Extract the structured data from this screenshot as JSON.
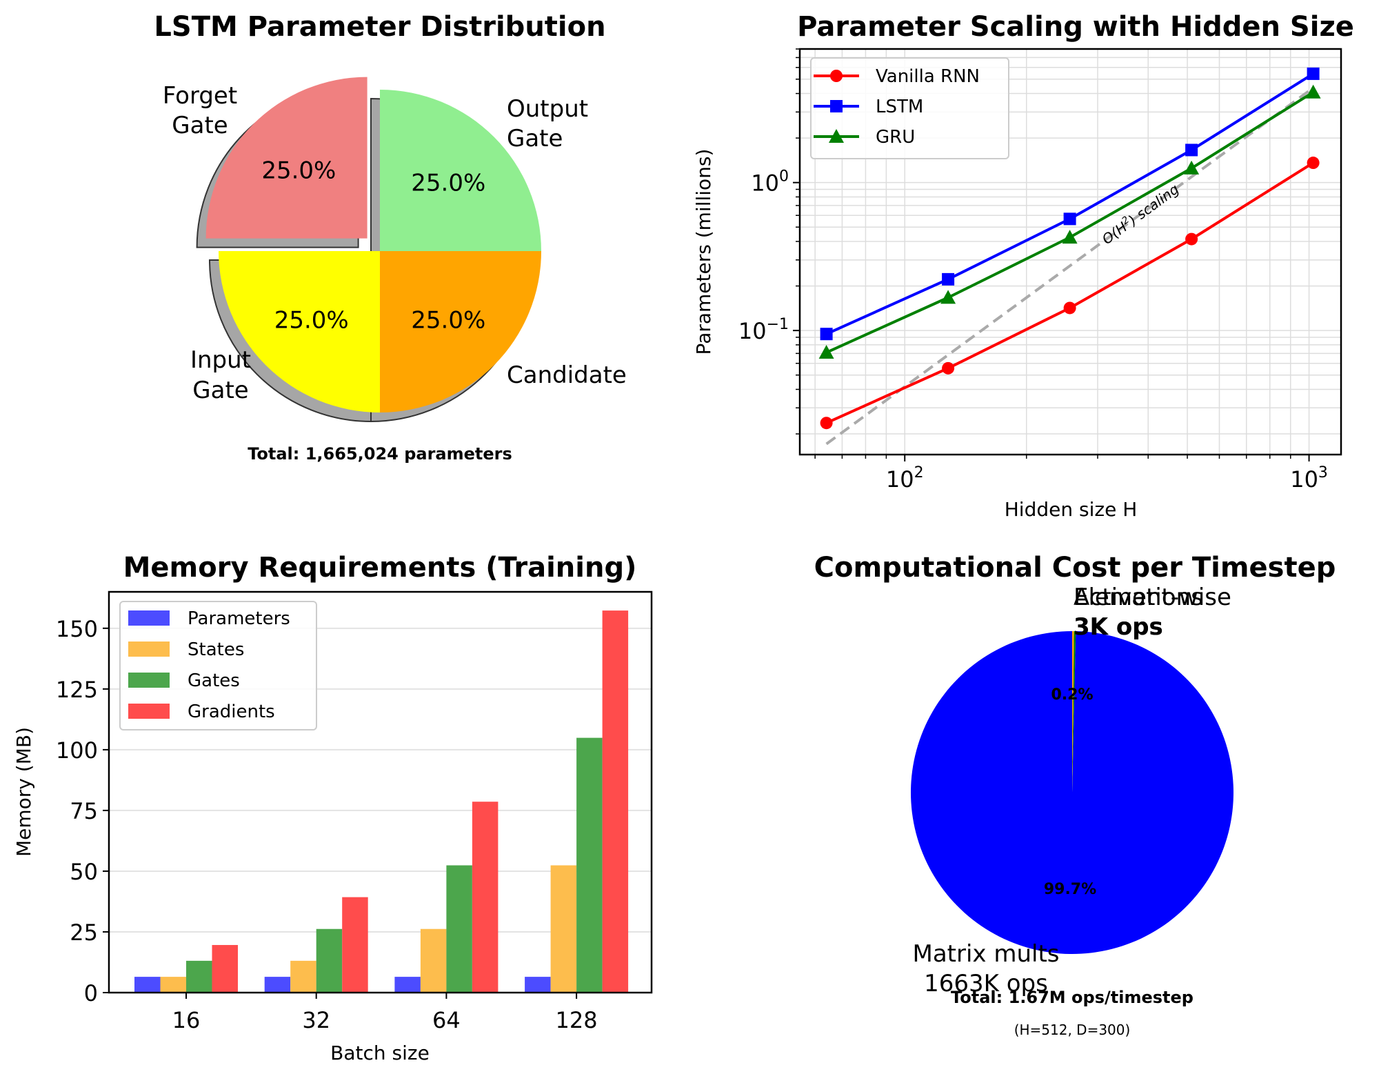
{
  "chart_data": [
    {
      "type": "pie",
      "title": "LSTM Parameter Distribution",
      "labels": [
        "Forget\nGate",
        "Input\nGate",
        "Candidate",
        "Output\nGate"
      ],
      "label_lines": [
        [
          "Forget",
          "Gate"
        ],
        [
          "Input",
          "Gate"
        ],
        [
          "Candidate"
        ],
        [
          "Output",
          "Gate"
        ]
      ],
      "values": [
        25.0,
        25.0,
        25.0,
        25.0
      ],
      "pct_labels": [
        "25.0%",
        "25.0%",
        "25.0%",
        "25.0%"
      ],
      "colors": [
        "#f08080",
        "#ffff00",
        "#ffa500",
        "#90ee90"
      ],
      "explode": [
        true,
        false,
        false,
        false
      ],
      "shadow": true,
      "footnote": "Total: 1,665,024 parameters"
    },
    {
      "type": "line",
      "title": "Parameter Scaling with Hidden Size",
      "xlabel": "Hidden size H",
      "ylabel": "Parameters (millions)",
      "xscale": "log",
      "yscale": "log",
      "x": [
        64,
        128,
        256,
        512,
        1024
      ],
      "xlim": [
        55,
        1200
      ],
      "ylim": [
        0.0145,
        8.0
      ],
      "xticks": [
        {
          "label_base": "10",
          "label_exp": "2"
        },
        {
          "label_base": "10",
          "label_exp": "3"
        }
      ],
      "yticks": [
        {
          "label_base": "10",
          "label_exp": "−1"
        },
        {
          "label_base": "10",
          "label_exp": "0"
        }
      ],
      "grid": true,
      "legend_position": "top-left",
      "series": [
        {
          "name": "Vanilla RNN",
          "color": "#ff0000",
          "marker": "circle",
          "values": [
            0.0237,
            0.0556,
            0.142,
            0.415,
            1.36
          ]
        },
        {
          "name": "LSTM",
          "color": "#0000ff",
          "marker": "square",
          "values": [
            0.0947,
            0.222,
            0.568,
            1.66,
            5.44
          ]
        },
        {
          "name": "GRU",
          "color": "#008000",
          "marker": "triangle",
          "values": [
            0.071,
            0.167,
            0.426,
            1.25,
            4.08
          ]
        }
      ],
      "reference_line": {
        "name": "O(H²) scaling",
        "label_prefix": "O(H",
        "label_sup": "2",
        "label_suffix": ") scaling",
        "color": "#aaaaaa",
        "x": [
          64,
          1024
        ],
        "values": [
          0.0171,
          4.37
        ]
      }
    },
    {
      "type": "bar",
      "title": "Memory Requirements (Training)",
      "xlabel": "Batch size",
      "ylabel": "Memory (MB)",
      "categories": [
        "16",
        "32",
        "64",
        "128"
      ],
      "ylim": [
        0,
        165
      ],
      "yticks": [
        0,
        25,
        50,
        75,
        100,
        125,
        150
      ],
      "grid": true,
      "legend_position": "top-left",
      "series": [
        {
          "name": "Parameters",
          "color": "#4c4cff",
          "values": [
            6.5,
            6.5,
            6.5,
            6.5
          ]
        },
        {
          "name": "States",
          "color": "#fdbd4d",
          "values": [
            6.5,
            13.1,
            26.2,
            52.4
          ]
        },
        {
          "name": "Gates",
          "color": "#4ca64c",
          "values": [
            13.1,
            26.2,
            52.4,
            104.9
          ]
        },
        {
          "name": "Gradients",
          "color": "#ff4c4c",
          "values": [
            19.6,
            39.3,
            78.6,
            157.3
          ]
        }
      ]
    },
    {
      "type": "pie",
      "title": "Computational Cost per Timestep",
      "labels": [
        "Matrix mults\n1663K ops",
        "Element-wise\n3K ops",
        "Activations\n3K ops"
      ],
      "label_lines": [
        [
          "Matrix mults",
          "1663K ops"
        ],
        [
          "Element-wise",
          "3K ops"
        ],
        [
          "Activations",
          "3K ops"
        ]
      ],
      "values": [
        1663,
        3,
        3
      ],
      "pct_labels": [
        "99.7%",
        "0.2%",
        "0.2%"
      ],
      "colors": [
        "#0000ff",
        "#008000",
        "#ffa500"
      ],
      "footnote": "Total: 1.67M ops/timestep",
      "subnote": "(H=512, D=300)"
    }
  ]
}
